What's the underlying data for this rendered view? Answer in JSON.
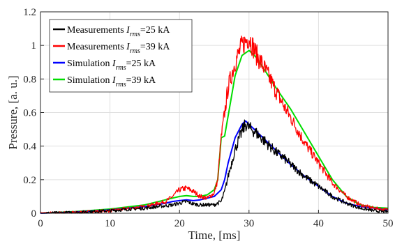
{
  "chart_data": {
    "type": "line",
    "title": "",
    "xlabel": "Time, [ms]",
    "ylabel": "Pressure, [a. u.]",
    "xlim": [
      0,
      50
    ],
    "ylim": [
      0,
      1.2
    ],
    "xticks": [
      "0",
      "10",
      "20",
      "30",
      "40",
      "50"
    ],
    "yticks": [
      "0",
      "0.2",
      "0.4",
      "0.6",
      "0.8",
      "1",
      "1.2"
    ],
    "grid": true,
    "legend_position": "top-left",
    "series": [
      {
        "name": "Measurements I_rms=25 kA",
        "legend": {
          "prefix": "Measurements ",
          "var": "I",
          "sub": "rms",
          "suffix": "=25",
          "unit": " kA"
        },
        "color": "#000000",
        "noisy": true,
        "x": [
          0,
          5,
          10,
          15,
          18,
          19,
          20,
          21,
          22,
          23,
          24,
          25,
          26,
          26.5,
          27,
          28,
          29,
          29.5,
          30,
          31,
          32,
          33,
          34,
          35,
          36,
          38,
          40,
          42,
          44,
          46,
          48,
          49,
          50
        ],
        "y": [
          0.0,
          0.005,
          0.015,
          0.03,
          0.045,
          0.05,
          0.06,
          0.07,
          0.055,
          0.05,
          0.05,
          0.05,
          0.07,
          0.13,
          0.22,
          0.38,
          0.49,
          0.53,
          0.51,
          0.48,
          0.44,
          0.4,
          0.36,
          0.33,
          0.29,
          0.22,
          0.16,
          0.1,
          0.06,
          0.03,
          0.015,
          0.01,
          0.01
        ]
      },
      {
        "name": "Measurements I_rms=39 kA",
        "legend": {
          "prefix": "Measurements ",
          "var": "I",
          "sub": "rms",
          "suffix": "=39",
          "unit": " kA"
        },
        "color": "#ff0000",
        "noisy": true,
        "x": [
          0,
          5,
          10,
          15,
          18,
          19,
          20,
          21,
          22,
          23,
          24,
          25,
          25.5,
          26,
          26.5,
          27,
          28,
          29,
          30,
          31,
          32,
          33,
          34,
          35,
          36,
          38,
          40,
          42,
          44,
          46,
          48,
          50
        ],
        "y": [
          0.0,
          0.005,
          0.015,
          0.04,
          0.07,
          0.1,
          0.14,
          0.15,
          0.13,
          0.1,
          0.09,
          0.12,
          0.2,
          0.45,
          0.6,
          0.75,
          0.9,
          1.0,
          1.05,
          0.95,
          0.88,
          0.8,
          0.72,
          0.64,
          0.57,
          0.42,
          0.3,
          0.18,
          0.1,
          0.05,
          0.03,
          0.02
        ]
      },
      {
        "name": "Simulation I_rms=25 kA",
        "legend": {
          "prefix": "Simulation ",
          "var": "I",
          "sub": "rms",
          "suffix": "=25",
          "unit": " kA"
        },
        "color": "#0000ff",
        "noisy": false,
        "x": [
          0,
          5,
          10,
          15,
          18,
          19,
          20,
          21,
          22,
          23,
          24,
          25,
          26,
          26.5,
          27,
          28,
          29,
          29.5,
          30,
          31,
          32,
          33,
          34,
          35,
          36,
          38,
          40,
          42,
          44,
          46,
          48,
          50
        ],
        "y": [
          0.0,
          0.007,
          0.02,
          0.04,
          0.06,
          0.07,
          0.075,
          0.08,
          0.075,
          0.08,
          0.09,
          0.1,
          0.14,
          0.2,
          0.3,
          0.45,
          0.53,
          0.55,
          0.53,
          0.49,
          0.45,
          0.41,
          0.37,
          0.33,
          0.29,
          0.22,
          0.16,
          0.1,
          0.06,
          0.04,
          0.03,
          0.02
        ]
      },
      {
        "name": "Simulation I_rms=39 kA",
        "legend": {
          "prefix": "Simulation ",
          "var": "I",
          "sub": "rms",
          "suffix": "=39",
          "unit": " kA"
        },
        "color": "#00dd00",
        "noisy": false,
        "x": [
          0,
          5,
          10,
          15,
          18,
          19,
          20,
          21,
          22,
          23,
          24,
          25,
          25.5,
          26,
          26.5,
          27,
          28,
          29,
          30,
          31,
          32,
          34,
          36,
          38,
          40,
          42,
          44,
          46,
          48,
          50
        ],
        "y": [
          0.0,
          0.01,
          0.025,
          0.05,
          0.08,
          0.09,
          0.1,
          0.105,
          0.1,
          0.1,
          0.11,
          0.14,
          0.2,
          0.45,
          0.46,
          0.58,
          0.82,
          0.94,
          0.97,
          0.93,
          0.87,
          0.74,
          0.62,
          0.48,
          0.34,
          0.2,
          0.1,
          0.05,
          0.035,
          0.03
        ]
      }
    ]
  }
}
